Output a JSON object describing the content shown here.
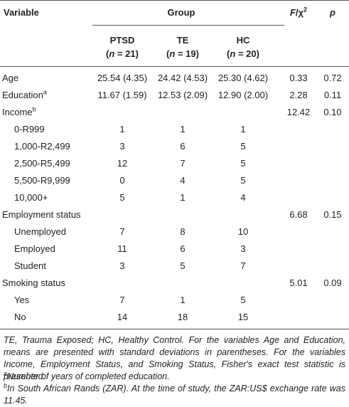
{
  "header": {
    "variable": "Variable",
    "group": "Group",
    "stat_f": "F",
    "stat_rest": "/χ",
    "stat_sup": "2",
    "p": "p",
    "groups": [
      {
        "name": "PTSD",
        "open": "(",
        "n": "n",
        "rest": " = 21)"
      },
      {
        "name": "TE",
        "open": "(",
        "n": "n",
        "rest": " = 19)"
      },
      {
        "name": "HC",
        "open": "(",
        "n": "n",
        "rest": " = 20)"
      }
    ]
  },
  "table": {
    "rows": [
      {
        "label": "Age",
        "cells": [
          "25.54 (4.35)",
          "24.42 (4.53)",
          "25.30 (4.62)"
        ],
        "stat": "0.33",
        "p": "0.72"
      },
      {
        "label": "Education",
        "sup": "a",
        "cells": [
          "11.67 (1.59)",
          "12.53 (2.09)",
          "12.90 (2.00)"
        ],
        "stat": "2.28",
        "p": "0.11"
      },
      {
        "label": "Income",
        "sup": "b",
        "stat": "12.42",
        "p": "0.10",
        "items": [
          {
            "label": "0-R999",
            "cells": [
              "1",
              "1",
              "1"
            ]
          },
          {
            "label": "1,000-R2,499",
            "cells": [
              "3",
              "6",
              "5"
            ]
          },
          {
            "label": "2,500-R5,499",
            "cells": [
              "12",
              "7",
              "5"
            ]
          },
          {
            "label": "5,500-R9,999",
            "cells": [
              "0",
              "4",
              "5"
            ]
          },
          {
            "label": "10,000+",
            "cells": [
              "5",
              "1",
              "4"
            ]
          }
        ]
      },
      {
        "label": "Employment status",
        "stat": "6.68",
        "p": "0.15",
        "items": [
          {
            "label": "Unemployed",
            "cells": [
              "7",
              "8",
              "10"
            ]
          },
          {
            "label": "Employed",
            "cells": [
              "11",
              "6",
              "3"
            ]
          },
          {
            "label": "Student",
            "cells": [
              "3",
              "5",
              "7"
            ]
          }
        ]
      },
      {
        "label": "Smoking status",
        "stat": "5.01",
        "p": "0.09",
        "items": [
          {
            "label": "Yes",
            "cells": [
              "7",
              "1",
              "5"
            ]
          },
          {
            "label": "No",
            "cells": [
              "14",
              "18",
              "15"
            ]
          }
        ]
      }
    ]
  },
  "footnotes": {
    "main": "TE, Trauma Exposed; HC, Healthy Control. For the variables Age and Education, means are presented with standard deviations in parentheses. For the variables Income, Employment Status, and Smoking Status, Fisher's exact test statistic is presented.",
    "a_sup": "a",
    "a": "Number of years of completed education.",
    "b_sup": "b",
    "b": "In South African Rands (ZAR). At the time of study, the ZAR:US$ exchange rate was 11.45."
  }
}
